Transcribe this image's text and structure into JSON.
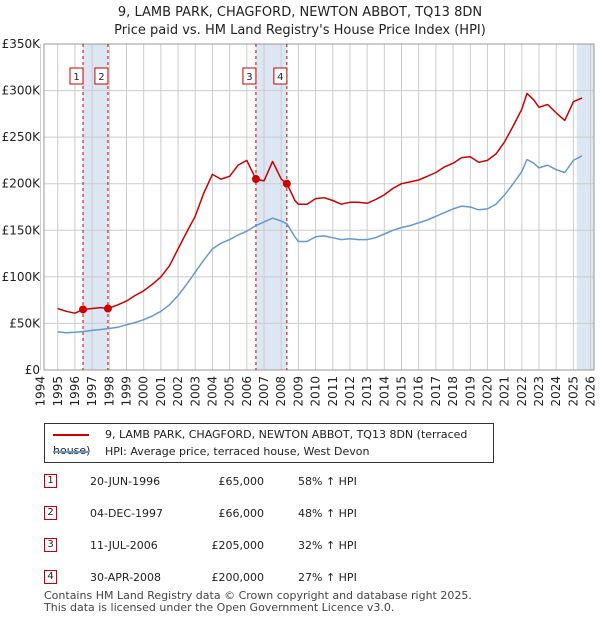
{
  "title_line1": "9, LAMB PARK, CHAGFORD, NEWTON ABBOT, TQ13 8DN",
  "title_line2": "Price paid vs. HM Land Registry's House Price Index (HPI)",
  "colors": {
    "red": "#cc0000",
    "blue": "#6699cc",
    "shade": "#dde6f3",
    "grid": "#cccccc"
  },
  "chart_data": {
    "type": "line",
    "xlim": [
      1994.2,
      2026.2
    ],
    "ylim": [
      0,
      350000
    ],
    "y_ticks": [
      {
        "v": 0,
        "label": "£0"
      },
      {
        "v": 50000,
        "label": "£50K"
      },
      {
        "v": 100000,
        "label": "£100K"
      },
      {
        "v": 150000,
        "label": "£150K"
      },
      {
        "v": 200000,
        "label": "£200K"
      },
      {
        "v": 250000,
        "label": "£250K"
      },
      {
        "v": 300000,
        "label": "£300K"
      },
      {
        "v": 350000,
        "label": "£350K"
      }
    ],
    "x_ticks": [
      "1994",
      "1995",
      "1996",
      "1997",
      "1998",
      "1999",
      "2000",
      "2001",
      "2002",
      "2003",
      "2004",
      "2005",
      "2006",
      "2007",
      "2008",
      "2009",
      "2010",
      "2011",
      "2012",
      "2013",
      "2014",
      "2015",
      "2016",
      "2017",
      "2018",
      "2019",
      "2020",
      "2021",
      "2022",
      "2023",
      "2024",
      "2025",
      "2026"
    ],
    "series": [
      {
        "name": "9, LAMB PARK, CHAGFORD, NEWTON ABBOT, TQ13 8DN (terraced house)",
        "color": "#cc0000",
        "points": [
          [
            1995.0,
            66000
          ],
          [
            1995.5,
            63000
          ],
          [
            1996.0,
            61000
          ],
          [
            1996.47,
            65000
          ],
          [
            1997.0,
            66000
          ],
          [
            1997.5,
            67000
          ],
          [
            1997.92,
            66000
          ],
          [
            1998.5,
            70000
          ],
          [
            1999.0,
            74000
          ],
          [
            1999.5,
            80000
          ],
          [
            2000.0,
            85000
          ],
          [
            2000.5,
            92000
          ],
          [
            2001.0,
            100000
          ],
          [
            2001.5,
            112000
          ],
          [
            2002.0,
            130000
          ],
          [
            2002.5,
            148000
          ],
          [
            2003.0,
            165000
          ],
          [
            2003.5,
            190000
          ],
          [
            2004.0,
            210000
          ],
          [
            2004.5,
            205000
          ],
          [
            2005.0,
            208000
          ],
          [
            2005.5,
            220000
          ],
          [
            2006.0,
            225000
          ],
          [
            2006.53,
            205000
          ],
          [
            2007.0,
            203000
          ],
          [
            2007.5,
            224000
          ],
          [
            2008.0,
            205000
          ],
          [
            2008.33,
            200000
          ],
          [
            2008.8,
            182000
          ],
          [
            2009.0,
            178000
          ],
          [
            2009.5,
            178000
          ],
          [
            2010.0,
            184000
          ],
          [
            2010.5,
            185000
          ],
          [
            2011.0,
            182000
          ],
          [
            2011.5,
            178000
          ],
          [
            2012.0,
            180000
          ],
          [
            2012.5,
            180000
          ],
          [
            2013.0,
            179000
          ],
          [
            2013.5,
            183000
          ],
          [
            2014.0,
            188000
          ],
          [
            2014.5,
            195000
          ],
          [
            2015.0,
            200000
          ],
          [
            2015.5,
            202000
          ],
          [
            2016.0,
            204000
          ],
          [
            2016.5,
            208000
          ],
          [
            2017.0,
            212000
          ],
          [
            2017.5,
            218000
          ],
          [
            2018.0,
            222000
          ],
          [
            2018.5,
            228000
          ],
          [
            2019.0,
            229000
          ],
          [
            2019.5,
            223000
          ],
          [
            2020.0,
            225000
          ],
          [
            2020.5,
            232000
          ],
          [
            2021.0,
            245000
          ],
          [
            2021.5,
            262000
          ],
          [
            2022.0,
            280000
          ],
          [
            2022.3,
            297000
          ],
          [
            2022.7,
            290000
          ],
          [
            2023.0,
            282000
          ],
          [
            2023.5,
            285000
          ],
          [
            2024.0,
            276000
          ],
          [
            2024.5,
            268000
          ],
          [
            2025.0,
            288000
          ],
          [
            2025.5,
            292000
          ]
        ]
      },
      {
        "name": "HPI: Average price, terraced house, West Devon",
        "color": "#6699cc",
        "points": [
          [
            1995.0,
            41000
          ],
          [
            1995.5,
            40000
          ],
          [
            1996.0,
            40500
          ],
          [
            1996.47,
            41200
          ],
          [
            1997.0,
            42500
          ],
          [
            1997.5,
            43500
          ],
          [
            1997.92,
            44500
          ],
          [
            1998.5,
            46000
          ],
          [
            1999.0,
            48500
          ],
          [
            1999.5,
            51000
          ],
          [
            2000.0,
            54000
          ],
          [
            2000.5,
            58000
          ],
          [
            2001.0,
            63000
          ],
          [
            2001.5,
            70000
          ],
          [
            2002.0,
            80000
          ],
          [
            2002.5,
            92000
          ],
          [
            2003.0,
            105000
          ],
          [
            2003.5,
            118000
          ],
          [
            2004.0,
            130000
          ],
          [
            2004.5,
            136000
          ],
          [
            2005.0,
            140000
          ],
          [
            2005.5,
            145000
          ],
          [
            2006.0,
            149000
          ],
          [
            2006.53,
            155000
          ],
          [
            2007.0,
            159000
          ],
          [
            2007.5,
            163000
          ],
          [
            2008.0,
            160000
          ],
          [
            2008.33,
            157000
          ],
          [
            2008.8,
            143000
          ],
          [
            2009.0,
            138000
          ],
          [
            2009.5,
            138000
          ],
          [
            2010.0,
            143000
          ],
          [
            2010.5,
            144000
          ],
          [
            2011.0,
            142000
          ],
          [
            2011.5,
            140000
          ],
          [
            2012.0,
            141000
          ],
          [
            2012.5,
            140000
          ],
          [
            2013.0,
            140000
          ],
          [
            2013.5,
            142000
          ],
          [
            2014.0,
            146000
          ],
          [
            2014.5,
            150000
          ],
          [
            2015.0,
            153000
          ],
          [
            2015.5,
            155000
          ],
          [
            2016.0,
            158000
          ],
          [
            2016.5,
            161000
          ],
          [
            2017.0,
            165000
          ],
          [
            2017.5,
            169000
          ],
          [
            2018.0,
            173000
          ],
          [
            2018.5,
            176000
          ],
          [
            2019.0,
            175000
          ],
          [
            2019.5,
            172000
          ],
          [
            2020.0,
            173000
          ],
          [
            2020.5,
            178000
          ],
          [
            2021.0,
            188000
          ],
          [
            2021.5,
            200000
          ],
          [
            2022.0,
            213000
          ],
          [
            2022.3,
            226000
          ],
          [
            2022.7,
            222000
          ],
          [
            2023.0,
            217000
          ],
          [
            2023.5,
            220000
          ],
          [
            2024.0,
            215000
          ],
          [
            2024.5,
            212000
          ],
          [
            2025.0,
            225000
          ],
          [
            2025.5,
            230000
          ]
        ]
      }
    ],
    "sale_markers": [
      {
        "label": "1",
        "x": 1996.47,
        "y": 65000
      },
      {
        "label": "2",
        "x": 1997.92,
        "y": 66000
      },
      {
        "label": "3",
        "x": 2006.53,
        "y": 205000
      },
      {
        "label": "4",
        "x": 2008.33,
        "y": 200000
      }
    ],
    "shaded_ranges": [
      [
        1996.47,
        1997.92
      ],
      [
        2006.53,
        2008.33
      ],
      [
        2025.2,
        2026.2
      ]
    ]
  },
  "legend": {
    "red_label": "9, LAMB PARK, CHAGFORD, NEWTON ABBOT, TQ13 8DN (terraced house)",
    "blue_label": "HPI: Average price, terraced house, West Devon"
  },
  "sales": [
    {
      "num": "1",
      "date": "20-JUN-1996",
      "price": "£65,000",
      "hpi": "58% ↑ HPI"
    },
    {
      "num": "2",
      "date": "04-DEC-1997",
      "price": "£66,000",
      "hpi": "48% ↑ HPI"
    },
    {
      "num": "3",
      "date": "11-JUL-2006",
      "price": "£205,000",
      "hpi": "32% ↑ HPI"
    },
    {
      "num": "4",
      "date": "30-APR-2008",
      "price": "£200,000",
      "hpi": "27% ↑ HPI"
    }
  ],
  "footer_line1": "Contains HM Land Registry data © Crown copyright and database right 2025.",
  "footer_line2": "This data is licensed under the Open Government Licence v3.0."
}
